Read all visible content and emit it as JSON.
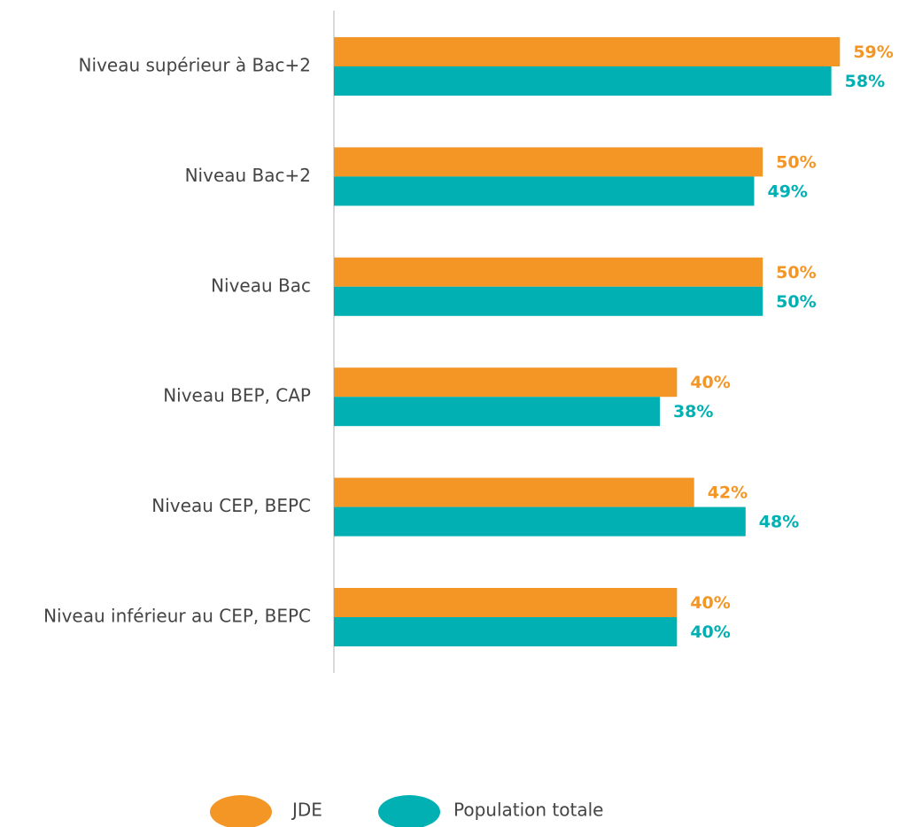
{
  "chart_data": {
    "type": "hbar",
    "categories": [
      "Niveau supérieur à Bac+2",
      "Niveau Bac+2",
      "Niveau Bac",
      "Niveau BEP, CAP",
      "Niveau CEP, BEPC",
      "Niveau inférieur au CEP, BEPC"
    ],
    "series": [
      {
        "name": "JDE",
        "color": "#f39626",
        "values": [
          59,
          50,
          50,
          40,
          42,
          40
        ],
        "value_labels": [
          "59%",
          "50%",
          "50%",
          "40%",
          "42%",
          "40%"
        ]
      },
      {
        "name": "Population totale",
        "color": "#00b0b3",
        "values": [
          58,
          49,
          50,
          38,
          48,
          40
        ],
        "value_labels": [
          "58%",
          "49%",
          "50%",
          "38%",
          "48%",
          "40%"
        ]
      }
    ],
    "xlim": [
      0,
      60
    ],
    "legend": "bottom"
  }
}
